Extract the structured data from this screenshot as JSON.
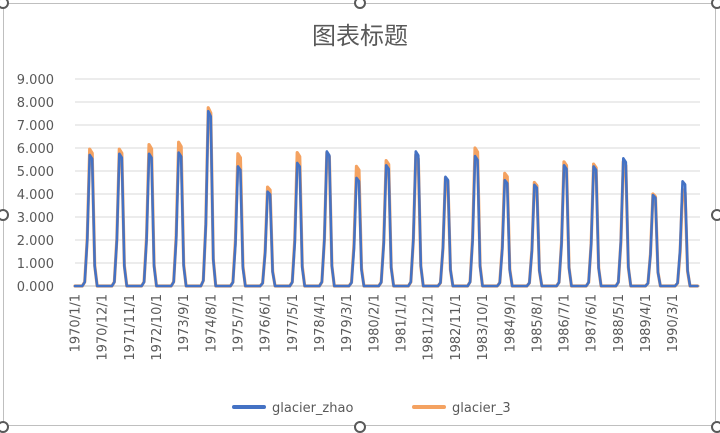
{
  "chart_data": {
    "type": "line",
    "title": "图表标题",
    "xlabel": "",
    "ylabel": "",
    "ylim": [
      0,
      9
    ],
    "y_ticks": [
      "0.000",
      "1.000",
      "2.000",
      "3.000",
      "4.000",
      "5.000",
      "6.000",
      "7.000",
      "8.000",
      "9.000"
    ],
    "x_tick_labels": [
      "1970/1/1",
      "1970/12/1",
      "1971/11/1",
      "1972/10/1",
      "1973/9/1",
      "1974/8/1",
      "1975/7/1",
      "1976/6/1",
      "1977/5/1",
      "1978/4/1",
      "1979/3/1",
      "1980/2/1",
      "1981/1/1",
      "1981/12/1",
      "1982/11/1",
      "1983/10/1",
      "1984/9/1",
      "1985/8/1",
      "1986/7/1",
      "1987/6/1",
      "1988/5/1",
      "1989/4/1",
      "1990/3/1"
    ],
    "x_range": [
      "1970/1/1",
      "1991/2/1"
    ],
    "gridlines": "horizontal",
    "legend_position": "bottom",
    "series": [
      {
        "name": "glacier_zhao",
        "color": "#4472c4",
        "annual_peaks": [
          5.7,
          5.75,
          5.75,
          5.8,
          7.6,
          5.2,
          4.1,
          5.35,
          5.85,
          4.7,
          5.25,
          5.85,
          4.75,
          5.65,
          4.6,
          4.4,
          5.25,
          5.2,
          5.55,
          3.95,
          4.55
        ]
      },
      {
        "name": "glacier_3",
        "color": "#f4a261",
        "annual_peaks": [
          5.95,
          5.95,
          6.15,
          6.25,
          7.75,
          5.75,
          4.3,
          5.8,
          5.8,
          5.2,
          5.45,
          5.7,
          4.7,
          6.0,
          4.9,
          4.5,
          5.4,
          5.3,
          5.4,
          4.0,
          4.2
        ]
      }
    ]
  }
}
